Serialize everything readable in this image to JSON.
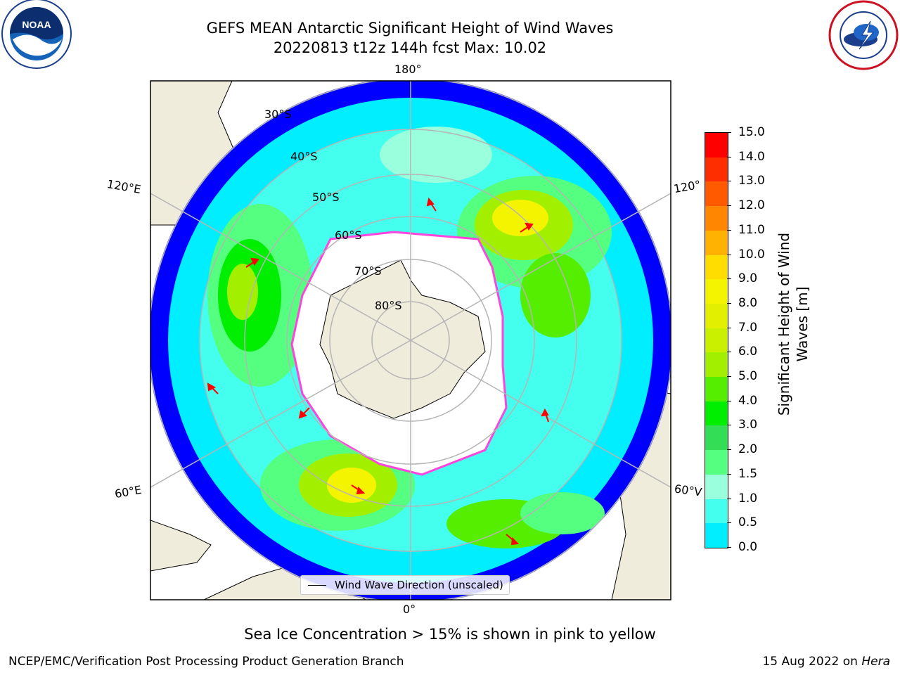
{
  "header": {
    "title_line1": "GEFS MEAN Antarctic Significant Height of Wind Waves",
    "title_line2": "20220813 t12z 144h fcst   Max: 10.02"
  },
  "logos": {
    "left": "noaa-logo",
    "right": "national-weather-service-logo"
  },
  "map": {
    "projection": "south-polar-stereographic",
    "longitude_labels": {
      "top": "180°",
      "bottom": "0°",
      "upper_left": "120°E",
      "lower_left": "60°E",
      "upper_right": "120°",
      "lower_right": "60°V"
    },
    "latitude_labels": [
      "30°S",
      "40°S",
      "50°S",
      "60°S",
      "70°S",
      "80°S"
    ],
    "legend_label": "Wind Wave Direction (unscaled)",
    "colors": {
      "land": "#efecdc",
      "ocean_low": "#0000ff",
      "sea_ice_edge": "#ff44dd",
      "arrows": "#ff0000",
      "gridlines": "#b5b5b5"
    }
  },
  "colorbar": {
    "label_line1": "Significant Height of Wind",
    "label_line2": "Waves [m]",
    "ticks": [
      "15.0",
      "14.0",
      "13.0",
      "12.0",
      "11.0",
      "10.0",
      "9.0",
      "8.0",
      "7.0",
      "6.0",
      "5.0",
      "4.0",
      "3.0",
      "2.0",
      "1.5",
      "1.0",
      "0.5",
      "0.0"
    ],
    "colors": [
      "#ff0000",
      "#ff2e00",
      "#ff5a00",
      "#ff8600",
      "#ffb200",
      "#ffdd00",
      "#f4f400",
      "#e2f000",
      "#caf000",
      "#a2f000",
      "#55ee00",
      "#00ee00",
      "#33dd55",
      "#55ff7f",
      "#99ffdd",
      "#44ffee",
      "#00eeff",
      "#0077ff",
      "#0000ff"
    ]
  },
  "note": "Sea Ice Concentration > 15% is shown in pink to yellow",
  "footer": {
    "left": "NCEP/EMC/Verification Post Processing Product Generation Branch",
    "right_prefix": "15 Aug 2022 on ",
    "right_host": "Hera"
  }
}
